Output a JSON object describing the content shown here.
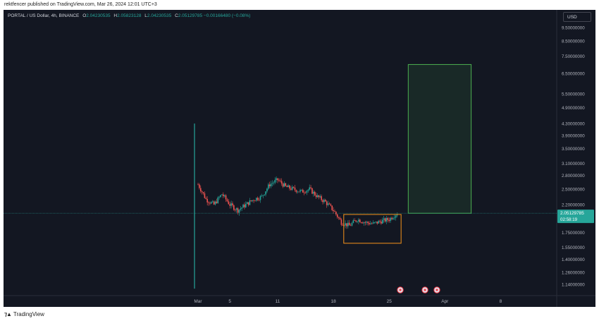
{
  "caption": "rektfencer published on TradingView.com, Mar 26, 2024 12:01 UTC+3",
  "legend": {
    "symbol": "PORTAL / US Dollar, 4h, BINANCE",
    "o_label": "O",
    "o": "2.04230535",
    "h_label": "H",
    "h": "2.05823128",
    "l_label": "L",
    "l": "2.04230535",
    "c_label": "C",
    "c": "2.05129785",
    "change": "−0.00166480 (−0.08%)"
  },
  "currency": "USD",
  "footer": {
    "brand": "TradingView"
  },
  "colors": {
    "up": "#26a69a",
    "down": "#ef5350",
    "background": "#131722",
    "box_orange": "#f7931a",
    "box_green": "#4caf50"
  },
  "chart_data": {
    "type": "candlestick",
    "scale": "log",
    "y_ticks": [
      "9.50000000",
      "8.50000000",
      "7.50000000",
      "6.50000000",
      "5.50000000",
      "4.90000000",
      "4.30000000",
      "3.90000000",
      "3.50000000",
      "3.10000000",
      "2.80000000",
      "2.50000000",
      "2.20000000",
      "1.75000000",
      "1.55000000",
      "1.40000000",
      "1.26000000",
      "1.14000000"
    ],
    "x_ticks": [
      "Mar",
      "5",
      "11",
      "18",
      "25",
      "Apr",
      "8"
    ],
    "last_price": "2.05129785",
    "countdown": "02:58:19",
    "first_candle": {
      "date": "Feb 29",
      "high": 4.3,
      "low": 1.1
    },
    "orange_box": {
      "start": "Mar 19",
      "end": "Mar 26",
      "top": 2.03,
      "bottom": 1.6
    },
    "green_box": {
      "start": "Mar 27",
      "end": "Apr 3",
      "top": 7.0,
      "bottom": 2.05
    }
  }
}
